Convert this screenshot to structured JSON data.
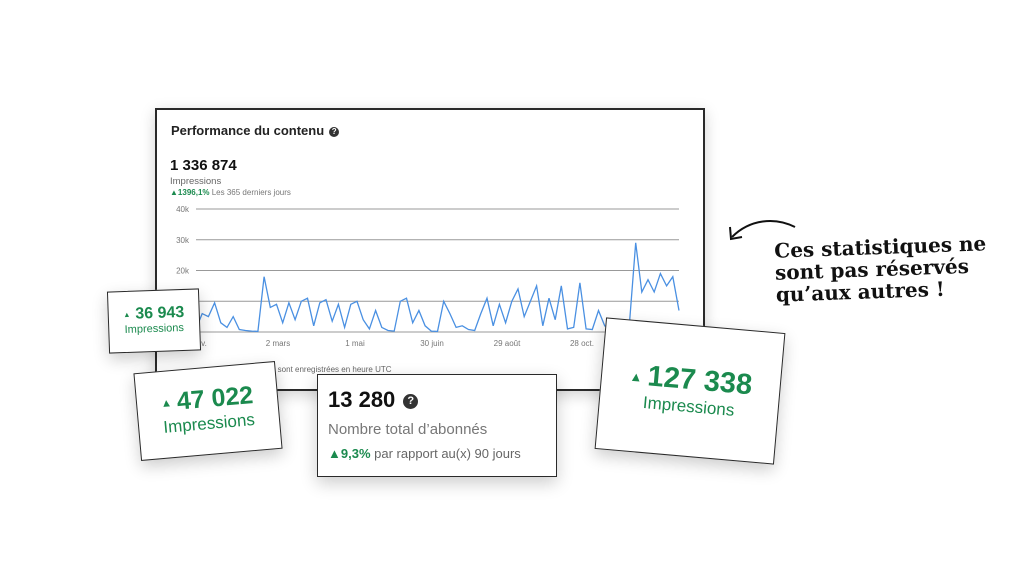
{
  "main_card": {
    "title": "Performance du contenu",
    "total": "1 336 874",
    "metric": "Impressions",
    "delta": "▲1396,1%",
    "delta_period": "Les 365 derniers jours",
    "footnote_visible": "es sont enregistrées en heure UTC"
  },
  "chart_data": {
    "type": "line",
    "ylim": [
      0,
      40000
    ],
    "yticks": [
      "40k",
      "30k",
      "20k"
    ],
    "xticks": [
      "v.",
      "2 mars",
      "1 mai",
      "30 juin",
      "29 août",
      "28 oct."
    ],
    "grid": true,
    "color": "#4a90e2",
    "values": [
      1000,
      6000,
      5000,
      9500,
      3000,
      1500,
      5000,
      800,
      500,
      300,
      200,
      18000,
      8000,
      9000,
      3000,
      9500,
      4000,
      10000,
      11000,
      2000,
      9500,
      10500,
      3500,
      9000,
      1500,
      9000,
      10000,
      4000,
      1000,
      7000,
      1500,
      500,
      300,
      10000,
      11000,
      3000,
      7000,
      2000,
      300,
      200,
      10000,
      6000,
      1500,
      2000,
      800,
      500,
      6000,
      11000,
      2000,
      9000,
      3000,
      10000,
      14000,
      5000,
      10000,
      15000,
      2000,
      11000,
      4000,
      15000,
      1000,
      1500,
      16000,
      1000,
      800,
      7000,
      2000,
      500,
      1500,
      1500,
      3000,
      29000,
      13000,
      17000,
      13000,
      19000,
      15000,
      18000,
      7000
    ]
  },
  "cards": [
    {
      "value": "36 943",
      "label": "Impressions"
    },
    {
      "value": "47 022",
      "label": "Impressions"
    },
    {
      "value": "13 280",
      "label": "Nombre total d’abonnés",
      "delta": "▲9,3%",
      "delta_text": "par rapport au(x) 90 jours"
    },
    {
      "value": "127 338",
      "label": "Impressions"
    }
  ],
  "annotation": [
    "Ces statistiques ne",
    "sont pas réservés",
    "qu’aux autres !"
  ],
  "colors": {
    "green": "#1b8a4e",
    "line": "#4a90e2"
  }
}
